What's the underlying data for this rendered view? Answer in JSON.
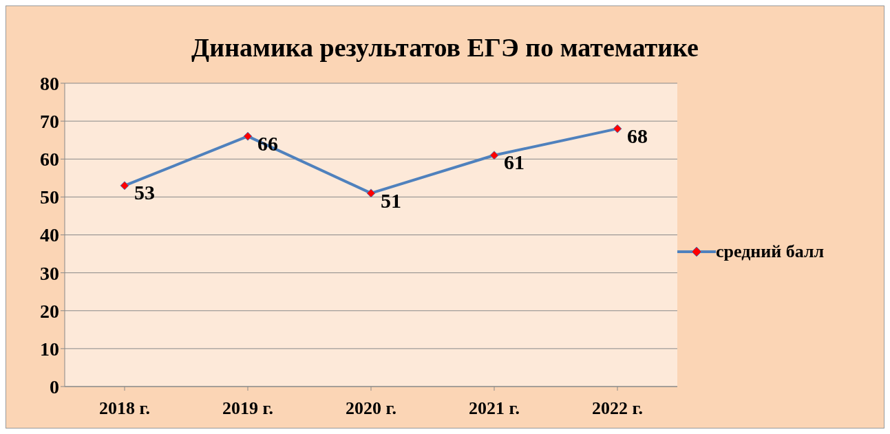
{
  "chart_data": {
    "type": "line",
    "title": "Динамика результатов ЕГЭ по математике",
    "categories": [
      "2018 г.",
      "2019 г.",
      "2020 г.",
      "2021 г.",
      "2022 г."
    ],
    "series": [
      {
        "name": "средний балл",
        "color": "#4f81bd",
        "values": [
          53,
          66,
          51,
          61,
          68
        ]
      }
    ],
    "ylim": [
      0,
      80
    ],
    "yticks": [
      0,
      10,
      20,
      30,
      40,
      50,
      60,
      70,
      80
    ],
    "grid": "y",
    "legend": "right",
    "marker": "diamond",
    "data_labels": true
  }
}
